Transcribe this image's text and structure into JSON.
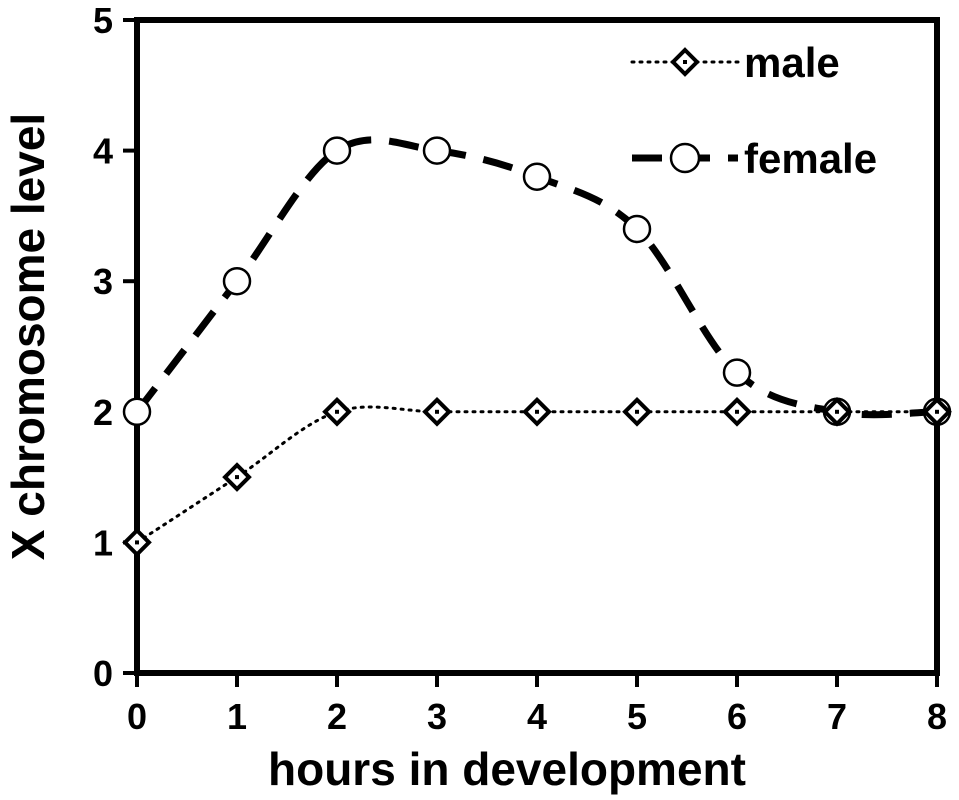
{
  "chart_data": {
    "type": "line",
    "xlabel": "hours in development",
    "ylabel": "X chromosome level",
    "xlim": [
      0,
      8
    ],
    "ylim": [
      0,
      5
    ],
    "x_ticks": [
      "0",
      "1",
      "2",
      "3",
      "4",
      "5",
      "6",
      "7",
      "8"
    ],
    "y_ticks": [
      "0",
      "1",
      "2",
      "3",
      "4",
      "5"
    ],
    "grid": false,
    "legend_position": "top-right",
    "x": [
      0,
      1,
      2,
      3,
      4,
      5,
      6,
      7,
      8
    ],
    "series": [
      {
        "name": "male",
        "values": [
          1,
          1.5,
          2,
          2,
          2,
          2,
          2,
          2,
          2
        ],
        "marker": "diamond",
        "line_style": "dotted"
      },
      {
        "name": "female",
        "values": [
          2,
          3,
          4,
          4,
          3.8,
          3.4,
          2.3,
          2,
          2
        ],
        "marker": "circle",
        "line_style": "dashed"
      }
    ]
  }
}
